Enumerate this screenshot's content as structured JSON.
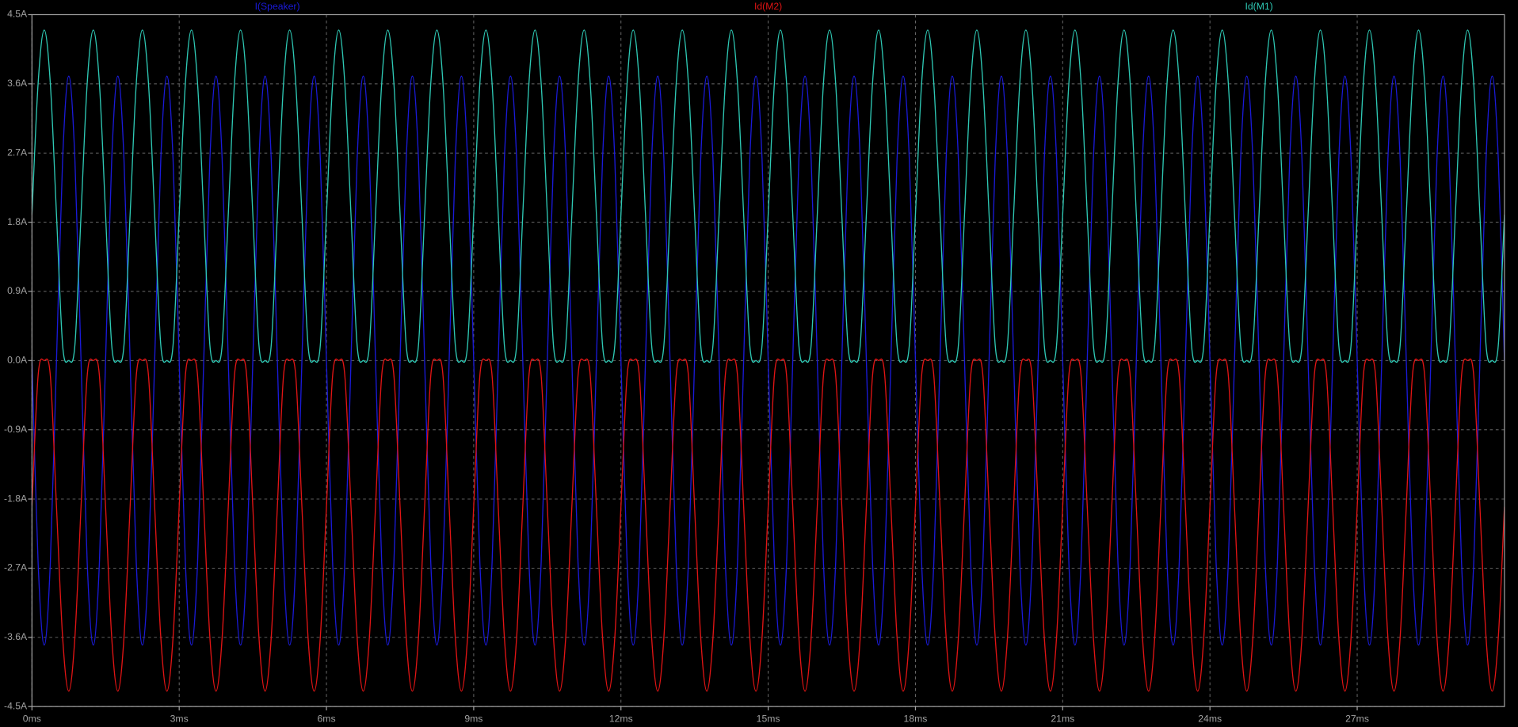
{
  "chart_data": {
    "type": "line",
    "x": [
      0,
      0.125,
      0.25,
      0.375,
      0.5,
      0.625,
      0.75,
      0.875,
      1,
      1.125,
      1.25,
      1.375,
      1.5,
      1.625,
      1.75,
      1.875,
      2,
      2.125,
      2.25,
      2.375,
      2.5,
      2.625,
      2.75,
      2.875,
      3,
      3.125,
      3.25,
      3.375,
      3.5,
      3.625,
      3.75,
      3.875,
      4,
      4.125,
      4.25,
      4.375,
      4.5,
      4.625,
      4.75,
      4.875,
      5,
      5.125,
      5.25,
      5.375,
      5.5,
      5.625,
      5.75,
      5.875,
      6,
      6.125,
      6.25,
      6.375,
      6.5,
      6.625,
      6.75,
      6.875,
      7,
      7.125,
      7.25,
      7.375,
      7.5,
      7.625,
      7.75,
      7.875,
      8,
      8.125,
      8.25,
      8.375,
      8.5,
      8.625,
      8.75,
      8.875,
      9,
      9.125,
      9.25,
      9.375,
      9.5,
      9.625,
      9.75,
      9.875,
      10,
      10.125,
      10.25,
      10.375,
      10.5,
      10.625,
      10.75,
      10.875,
      11,
      11.125,
      11.25,
      11.375,
      11.5,
      11.625,
      11.75,
      11.875,
      12,
      12.125,
      12.25,
      12.375,
      12.5,
      12.625,
      12.75,
      12.875,
      13,
      13.125,
      13.25,
      13.375,
      13.5,
      13.625,
      13.75,
      13.875,
      14,
      14.125,
      14.25,
      14.375,
      14.5,
      14.625,
      14.75,
      14.875,
      15,
      15.125,
      15.25,
      15.375,
      15.5,
      15.625,
      15.75,
      15.875,
      16,
      16.125,
      16.25,
      16.375,
      16.5,
      16.625,
      16.75,
      16.875,
      17,
      17.125,
      17.25,
      17.375,
      17.5,
      17.625,
      17.75,
      17.875,
      18,
      18.125,
      18.25,
      18.375,
      18.5,
      18.625,
      18.75,
      18.875,
      19,
      19.125,
      19.25,
      19.375,
      19.5,
      19.625,
      19.75,
      19.875,
      20,
      20.125,
      20.25,
      20.375,
      20.5,
      20.625,
      20.75,
      20.875,
      21,
      21.125,
      21.25,
      21.375,
      21.5,
      21.625,
      21.75,
      21.875,
      22,
      22.125,
      22.25,
      22.375,
      22.5,
      22.625,
      22.75,
      22.875,
      23,
      23.125,
      23.25,
      23.375,
      23.5,
      23.625,
      23.75,
      23.875,
      24,
      24.125,
      24.25,
      24.375,
      24.5,
      24.625,
      24.75,
      24.875,
      25,
      25.125,
      25.25,
      25.375,
      25.5,
      25.625,
      25.75,
      25.875,
      26,
      26.125,
      26.25,
      26.375,
      26.5,
      26.625,
      26.75,
      26.875,
      27,
      27.125,
      27.25,
      27.375,
      27.5,
      27.625,
      27.75,
      27.875,
      28,
      28.125,
      28.25,
      28.375,
      28.5,
      28.625,
      28.75,
      28.875,
      29,
      29.125,
      29.25,
      29.375,
      29.5,
      29.625,
      29.75,
      29.875,
      30
    ],
    "series": [
      {
        "name": "I(Speaker)",
        "color": "#1a1ad8",
        "values": [
          0,
          -2.62,
          -3.7,
          -2.62,
          0,
          2.62,
          3.7,
          2.62,
          0,
          -2.62,
          -3.7,
          -2.62,
          0,
          2.62,
          3.7,
          2.62,
          0,
          -2.62,
          -3.7,
          -2.62,
          0,
          2.62,
          3.7,
          2.62,
          0,
          -2.62,
          -3.7,
          -2.62,
          0,
          2.62,
          3.7,
          2.62,
          0,
          -2.62,
          -3.7,
          -2.62,
          0,
          2.62,
          3.7,
          2.62,
          0,
          -2.62,
          -3.7,
          -2.62,
          0,
          2.62,
          3.7,
          2.62,
          0,
          -2.62,
          -3.7,
          -2.62,
          0,
          2.62,
          3.7,
          2.62,
          0,
          -2.62,
          -3.7,
          -2.62,
          0,
          2.62,
          3.7,
          2.62,
          0,
          -2.62,
          -3.7,
          -2.62,
          0,
          2.62,
          3.7,
          2.62,
          0,
          -2.62,
          -3.7,
          -2.62,
          0,
          2.62,
          3.7,
          2.62,
          0,
          -2.62,
          -3.7,
          -2.62,
          0,
          2.62,
          3.7,
          2.62,
          0,
          -2.62,
          -3.7,
          -2.62,
          0,
          2.62,
          3.7,
          2.62,
          0,
          -2.62,
          -3.7,
          -2.62,
          0,
          2.62,
          3.7,
          2.62,
          0,
          -2.62,
          -3.7,
          -2.62,
          0,
          2.62,
          3.7,
          2.62,
          0,
          -2.62,
          -3.7,
          -2.62,
          0,
          2.62,
          3.7,
          2.62,
          0,
          -2.62,
          -3.7,
          -2.62,
          0,
          2.62,
          3.7,
          2.62,
          0,
          -2.62,
          -3.7,
          -2.62,
          0,
          2.62,
          3.7,
          2.62,
          0,
          -2.62,
          -3.7,
          -2.62,
          0,
          2.62,
          3.7,
          2.62,
          0,
          -2.62,
          -3.7,
          -2.62,
          0,
          2.62,
          3.7,
          2.62,
          0,
          -2.62,
          -3.7,
          -2.62,
          0,
          2.62,
          3.7,
          2.62,
          0,
          -2.62,
          -3.7,
          -2.62,
          0,
          2.62,
          3.7,
          2.62,
          0,
          -2.62,
          -3.7,
          -2.62,
          0,
          2.62,
          3.7,
          2.62,
          0,
          -2.62,
          -3.7,
          -2.62,
          0,
          2.62,
          3.7,
          2.62,
          0,
          -2.62,
          -3.7,
          -2.62,
          0,
          2.62,
          3.7,
          2.62,
          0,
          -2.62,
          -3.7,
          -2.62,
          0,
          2.62,
          3.7,
          2.62,
          0,
          -2.62,
          -3.7,
          -2.62,
          0,
          2.62,
          3.7,
          2.62,
          0,
          -2.62,
          -3.7,
          -2.62,
          0,
          2.62,
          3.7,
          2.62,
          0,
          -2.62,
          -3.7,
          -2.62,
          0,
          2.62,
          3.7,
          2.62,
          0,
          -2.62,
          -3.7,
          -2.62,
          0,
          2.62,
          3.7,
          2.62,
          0,
          -2.62,
          -3.7,
          -2.62,
          0,
          2.62,
          3.7,
          2.62,
          0
        ]
      },
      {
        "name": "Id(M2)",
        "color": "#e01414",
        "values": [
          -1.9,
          -0.2,
          0,
          -0.2,
          -1.9,
          -3.6,
          -4.3,
          -3.6,
          -1.9,
          -0.2,
          0,
          -0.2,
          -1.9,
          -3.6,
          -4.3,
          -3.6,
          -1.9,
          -0.2,
          0,
          -0.2,
          -1.9,
          -3.6,
          -4.3,
          -3.6,
          -1.9,
          -0.2,
          0,
          -0.2,
          -1.9,
          -3.6,
          -4.3,
          -3.6,
          -1.9,
          -0.2,
          0,
          -0.2,
          -1.9,
          -3.6,
          -4.3,
          -3.6,
          -1.9,
          -0.2,
          0,
          -0.2,
          -1.9,
          -3.6,
          -4.3,
          -3.6,
          -1.9,
          -0.2,
          0,
          -0.2,
          -1.9,
          -3.6,
          -4.3,
          -3.6,
          -1.9,
          -0.2,
          0,
          -0.2,
          -1.9,
          -3.6,
          -4.3,
          -3.6,
          -1.9,
          -0.2,
          0,
          -0.2,
          -1.9,
          -3.6,
          -4.3,
          -3.6,
          -1.9,
          -0.2,
          0,
          -0.2,
          -1.9,
          -3.6,
          -4.3,
          -3.6,
          -1.9,
          -0.2,
          0,
          -0.2,
          -1.9,
          -3.6,
          -4.3,
          -3.6,
          -1.9,
          -0.2,
          0,
          -0.2,
          -1.9,
          -3.6,
          -4.3,
          -3.6,
          -1.9,
          -0.2,
          0,
          -0.2,
          -1.9,
          -3.6,
          -4.3,
          -3.6,
          -1.9,
          -0.2,
          0,
          -0.2,
          -1.9,
          -3.6,
          -4.3,
          -3.6,
          -1.9,
          -0.2,
          0,
          -0.2,
          -1.9,
          -3.6,
          -4.3,
          -3.6,
          -1.9,
          -0.2,
          0,
          -0.2,
          -1.9,
          -3.6,
          -4.3,
          -3.6,
          -1.9,
          -0.2,
          0,
          -0.2,
          -1.9,
          -3.6,
          -4.3,
          -3.6,
          -1.9,
          -0.2,
          0,
          -0.2,
          -1.9,
          -3.6,
          -4.3,
          -3.6,
          -1.9,
          -0.2,
          0,
          -0.2,
          -1.9,
          -3.6,
          -4.3,
          -3.6,
          -1.9,
          -0.2,
          0,
          -0.2,
          -1.9,
          -3.6,
          -4.3,
          -3.6,
          -1.9,
          -0.2,
          0,
          -0.2,
          -1.9,
          -3.6,
          -4.3,
          -3.6,
          -1.9,
          -0.2,
          0,
          -0.2,
          -1.9,
          -3.6,
          -4.3,
          -3.6,
          -1.9,
          -0.2,
          0,
          -0.2,
          -1.9,
          -3.6,
          -4.3,
          -3.6,
          -1.9,
          -0.2,
          0,
          -0.2,
          -1.9,
          -3.6,
          -4.3,
          -3.6,
          -1.9,
          -0.2,
          0,
          -0.2,
          -1.9,
          -3.6,
          -4.3,
          -3.6,
          -1.9,
          -0.2,
          0,
          -0.2,
          -1.9,
          -3.6,
          -4.3,
          -3.6,
          -1.9,
          -0.2,
          0,
          -0.2,
          -1.9,
          -3.6,
          -4.3,
          -3.6,
          -1.9,
          -0.2,
          0,
          -0.2,
          -1.9,
          -3.6,
          -4.3,
          -3.6,
          -1.9,
          -0.2,
          0,
          -0.2,
          -1.9,
          -3.6,
          -4.3,
          -3.6,
          -1.9,
          -0.2,
          0,
          -0.2,
          -1.9,
          -3.6,
          -4.3,
          -3.6,
          -1.9
        ]
      },
      {
        "name": "Id(M1)",
        "color": "#2ec8b4",
        "values": [
          1.9,
          3.6,
          4.3,
          3.6,
          1.9,
          0.2,
          0,
          0.2,
          1.9,
          3.6,
          4.3,
          3.6,
          1.9,
          0.2,
          0,
          0.2,
          1.9,
          3.6,
          4.3,
          3.6,
          1.9,
          0.2,
          0,
          0.2,
          1.9,
          3.6,
          4.3,
          3.6,
          1.9,
          0.2,
          0,
          0.2,
          1.9,
          3.6,
          4.3,
          3.6,
          1.9,
          0.2,
          0,
          0.2,
          1.9,
          3.6,
          4.3,
          3.6,
          1.9,
          0.2,
          0,
          0.2,
          1.9,
          3.6,
          4.3,
          3.6,
          1.9,
          0.2,
          0,
          0.2,
          1.9,
          3.6,
          4.3,
          3.6,
          1.9,
          0.2,
          0,
          0.2,
          1.9,
          3.6,
          4.3,
          3.6,
          1.9,
          0.2,
          0,
          0.2,
          1.9,
          3.6,
          4.3,
          3.6,
          1.9,
          0.2,
          0,
          0.2,
          1.9,
          3.6,
          4.3,
          3.6,
          1.9,
          0.2,
          0,
          0.2,
          1.9,
          3.6,
          4.3,
          3.6,
          1.9,
          0.2,
          0,
          0.2,
          1.9,
          3.6,
          4.3,
          3.6,
          1.9,
          0.2,
          0,
          0.2,
          1.9,
          3.6,
          4.3,
          3.6,
          1.9,
          0.2,
          0,
          0.2,
          1.9,
          3.6,
          4.3,
          3.6,
          1.9,
          0.2,
          0,
          0.2,
          1.9,
          3.6,
          4.3,
          3.6,
          1.9,
          0.2,
          0,
          0.2,
          1.9,
          3.6,
          4.3,
          3.6,
          1.9,
          0.2,
          0,
          0.2,
          1.9,
          3.6,
          4.3,
          3.6,
          1.9,
          0.2,
          0,
          0.2,
          1.9,
          3.6,
          4.3,
          3.6,
          1.9,
          0.2,
          0,
          0.2,
          1.9,
          3.6,
          4.3,
          3.6,
          1.9,
          0.2,
          0,
          0.2,
          1.9,
          3.6,
          4.3,
          3.6,
          1.9,
          0.2,
          0,
          0.2,
          1.9,
          3.6,
          4.3,
          3.6,
          1.9,
          0.2,
          0,
          0.2,
          1.9,
          3.6,
          4.3,
          3.6,
          1.9,
          0.2,
          0,
          0.2,
          1.9,
          3.6,
          4.3,
          3.6,
          1.9,
          0.2,
          0,
          0.2,
          1.9,
          3.6,
          4.3,
          3.6,
          1.9,
          0.2,
          0,
          0.2,
          1.9,
          3.6,
          4.3,
          3.6,
          1.9,
          0.2,
          0,
          0.2,
          1.9,
          3.6,
          4.3,
          3.6,
          1.9,
          0.2,
          0,
          0.2,
          1.9,
          3.6,
          4.3,
          3.6,
          1.9,
          0.2,
          0,
          0.2,
          1.9,
          3.6,
          4.3,
          3.6,
          1.9,
          0.2,
          0,
          0.2,
          1.9,
          3.6,
          4.3,
          3.6,
          1.9,
          0.2,
          0,
          0.2,
          1.9
        ]
      }
    ],
    "xlim": [
      0,
      30
    ],
    "xticks": [
      {
        "value": 0,
        "label": "0ms"
      },
      {
        "value": 3,
        "label": "3ms"
      },
      {
        "value": 6,
        "label": "6ms"
      },
      {
        "value": 9,
        "label": "9ms"
      },
      {
        "value": 12,
        "label": "12ms"
      },
      {
        "value": 15,
        "label": "15ms"
      },
      {
        "value": 18,
        "label": "18ms"
      },
      {
        "value": 21,
        "label": "21ms"
      },
      {
        "value": 24,
        "label": "24ms"
      },
      {
        "value": 27,
        "label": "27ms"
      }
    ],
    "ylim": [
      -4.5,
      4.5
    ],
    "yticks": [
      {
        "value": -4.5,
        "label": "-4.5A"
      },
      {
        "value": -3.6,
        "label": "-3.6A"
      },
      {
        "value": -2.7,
        "label": "-2.7A"
      },
      {
        "value": -1.8,
        "label": "-1.8A"
      },
      {
        "value": -0.9,
        "label": "-0.9A"
      },
      {
        "value": 0,
        "label": "0.0A"
      },
      {
        "value": 0.9,
        "label": "0.9A"
      },
      {
        "value": 1.8,
        "label": "1.8A"
      },
      {
        "value": 2.7,
        "label": "2.7A"
      },
      {
        "value": 3.6,
        "label": "3.6A"
      },
      {
        "value": 4.5,
        "label": "4.5A"
      }
    ],
    "grid": true,
    "legend": "top"
  }
}
